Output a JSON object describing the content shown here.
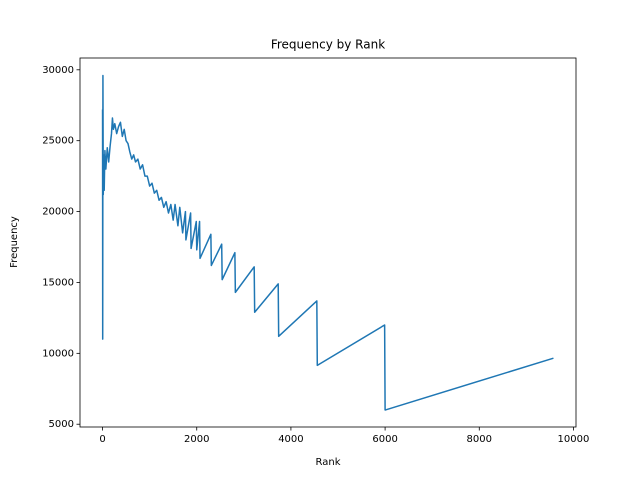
{
  "chart_data": {
    "type": "line",
    "title": "Frequency by Rank",
    "x_label": "Rank",
    "y_label": "Frequency",
    "color": "#1f77b4",
    "x": [
      0,
      3,
      8,
      15,
      25,
      35,
      50,
      70,
      100,
      130,
      160,
      190,
      210,
      230,
      260,
      300,
      340,
      380,
      420,
      460,
      500,
      540,
      580,
      620,
      660,
      700,
      750,
      800,
      850,
      900,
      950,
      1000,
      1050,
      1100,
      1150,
      1200,
      1250,
      1300,
      1350,
      1400,
      1450,
      1500,
      1540,
      1600,
      1640,
      1700,
      1760,
      1770,
      1870,
      1880,
      1990,
      2000,
      2060,
      2070,
      2300,
      2310,
      2530,
      2540,
      2810,
      2820,
      3220,
      3230,
      3730,
      3740,
      4550,
      4560,
      5990,
      6000,
      9575
    ],
    "values": [
      27200,
      11000,
      29600,
      21200,
      24000,
      21500,
      24300,
      23000,
      24500,
      23500,
      24600,
      25500,
      26600,
      25800,
      26200,
      25500,
      26000,
      26300,
      25300,
      25800,
      25000,
      24800,
      24200,
      23700,
      24000,
      23500,
      23700,
      23000,
      23300,
      22500,
      22500,
      21800,
      22000,
      21300,
      21500,
      20800,
      21000,
      20300,
      20700,
      19900,
      20500,
      19400,
      20500,
      19000,
      20300,
      18500,
      20000,
      18000,
      19900,
      17400,
      19300,
      17300,
      19300,
      16700,
      18400,
      16200,
      17700,
      15200,
      17100,
      14300,
      16100,
      12900,
      14900,
      11200,
      13700,
      9150,
      12000,
      6000,
      9660
    ],
    "xlim": [
      -479,
      10054
    ],
    "ylim": [
      4804,
      30833
    ],
    "xticks": [
      0,
      2000,
      4000,
      6000,
      8000,
      10000
    ],
    "yticks": [
      5000,
      10000,
      15000,
      20000,
      25000,
      30000
    ]
  }
}
